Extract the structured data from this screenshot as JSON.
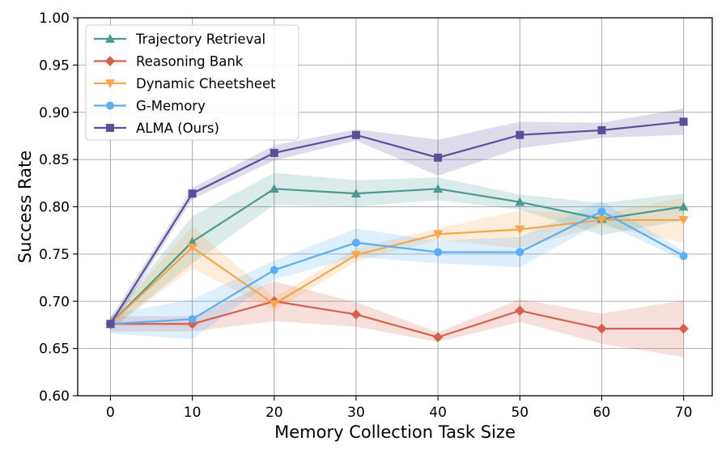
{
  "chart_data": {
    "type": "line",
    "xlabel": "Memory Collection Task Size",
    "ylabel": "Success Rate",
    "x": [
      0,
      10,
      20,
      30,
      40,
      50,
      60,
      70
    ],
    "xlim": [
      -4,
      73.5
    ],
    "ylim": [
      0.6,
      1.0
    ],
    "xticks": [
      "0",
      "10",
      "20",
      "30",
      "40",
      "50",
      "60",
      "70"
    ],
    "yticks": [
      "0.60",
      "0.65",
      "0.70",
      "0.75",
      "0.80",
      "0.85",
      "0.90",
      "0.95",
      "1.00"
    ],
    "grid": true,
    "legend_position": "top-left",
    "series": [
      {
        "name": "Trajectory Retrieval",
        "color": "#4a9a8f",
        "marker": "triangle-up",
        "values": [
          0.676,
          0.763,
          0.819,
          0.814,
          0.819,
          0.805,
          0.787,
          0.8
        ],
        "lower": [
          0.67,
          0.74,
          0.802,
          0.8,
          0.807,
          0.797,
          0.77,
          0.786
        ],
        "upper": [
          0.682,
          0.79,
          0.836,
          0.828,
          0.831,
          0.813,
          0.804,
          0.814
        ]
      },
      {
        "name": "Reasoning Bank",
        "color": "#d6604d",
        "marker": "diamond",
        "values": [
          0.676,
          0.676,
          0.7,
          0.686,
          0.662,
          0.69,
          0.671,
          0.671
        ],
        "lower": [
          0.668,
          0.668,
          0.679,
          0.673,
          0.657,
          0.678,
          0.655,
          0.641
        ],
        "upper": [
          0.684,
          0.684,
          0.721,
          0.699,
          0.667,
          0.702,
          0.687,
          0.701
        ]
      },
      {
        "name": "Dynamic Cheetsheet",
        "color": "#f7a64a",
        "marker": "triangle-down",
        "values": [
          0.676,
          0.757,
          0.697,
          0.749,
          0.771,
          0.776,
          0.786,
          0.786
        ],
        "lower": [
          0.67,
          0.735,
          0.69,
          0.742,
          0.765,
          0.756,
          0.78,
          0.762
        ],
        "upper": [
          0.682,
          0.779,
          0.704,
          0.756,
          0.777,
          0.796,
          0.792,
          0.81
        ]
      },
      {
        "name": "G-Memory",
        "color": "#5aaef5",
        "marker": "circle",
        "values": [
          0.676,
          0.681,
          0.733,
          0.762,
          0.752,
          0.752,
          0.795,
          0.748
        ],
        "lower": [
          0.666,
          0.66,
          0.723,
          0.747,
          0.74,
          0.736,
          0.784,
          0.743
        ],
        "upper": [
          0.686,
          0.702,
          0.743,
          0.777,
          0.764,
          0.768,
          0.806,
          0.753
        ]
      },
      {
        "name": "ALMA (Ours)",
        "color": "#5a4f9c",
        "marker": "square",
        "values": [
          0.676,
          0.814,
          0.857,
          0.876,
          0.852,
          0.876,
          0.881,
          0.89
        ],
        "lower": [
          0.67,
          0.808,
          0.849,
          0.87,
          0.833,
          0.862,
          0.873,
          0.876
        ],
        "upper": [
          0.682,
          0.82,
          0.865,
          0.882,
          0.871,
          0.89,
          0.889,
          0.904
        ]
      }
    ]
  }
}
